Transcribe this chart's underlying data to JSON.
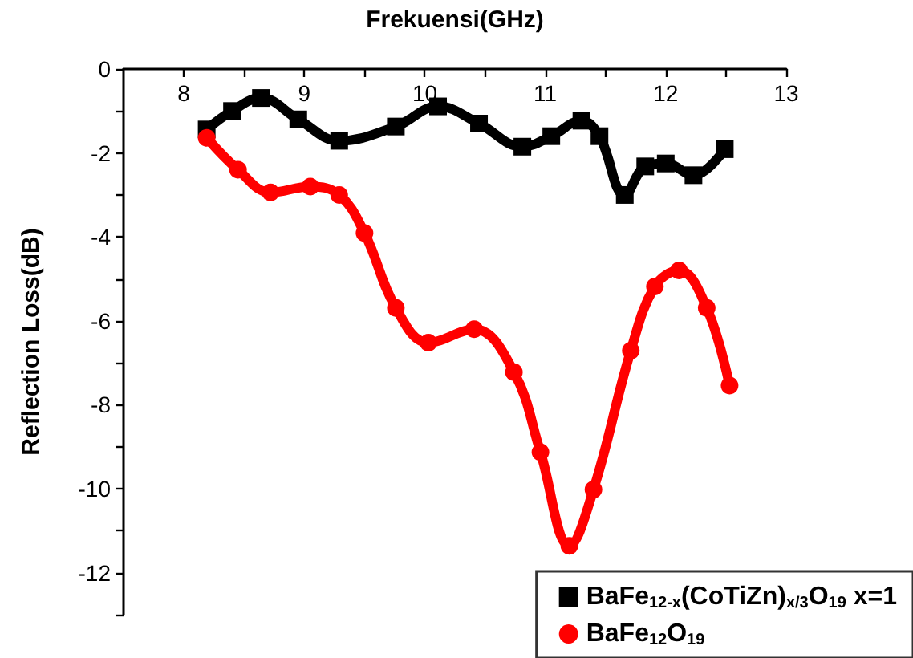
{
  "chart_data": {
    "type": "line",
    "xlabel": "Frekuensi(GHz)",
    "ylabel": "Reflection Loss(dB)",
    "xlim": [
      7.5,
      13
    ],
    "xticks": [
      8,
      {
        "value": 8.5,
        "label": null
      },
      9,
      {
        "value": 9.5,
        "label": null
      },
      10,
      {
        "value": 10.5,
        "label": null
      },
      11,
      {
        "value": 11.5,
        "label": null
      },
      12,
      {
        "value": 12.5,
        "label": null
      },
      13
    ],
    "ylim": [
      -13,
      0
    ],
    "yticks": [
      0,
      {
        "value": -1,
        "label": null
      },
      -2,
      {
        "value": -3,
        "label": null
      },
      -4,
      {
        "value": -5,
        "label": null
      },
      -6,
      {
        "value": -7,
        "label": null
      },
      -8,
      {
        "value": -9,
        "label": null
      },
      -10,
      {
        "value": -11,
        "label": null
      },
      -12,
      {
        "value": -13,
        "label": null
      }
    ],
    "legend": "bottom right",
    "grid": false,
    "series": [
      {
        "name": "BaFe$_{12-x}$(CoTiZn)$_{x/3}$O$_{19}$ x=1",
        "color": "#000000",
        "marker": "square",
        "x": [
          8.19,
          8.4,
          8.64,
          8.95,
          9.29,
          9.76,
          10.11,
          10.45,
          10.81,
          11.05,
          11.3,
          11.45,
          11.66,
          11.83,
          12.0,
          12.23,
          12.49
        ],
        "values": [
          -1.44,
          -1.0,
          -0.69,
          -1.2,
          -1.71,
          -1.37,
          -0.89,
          -1.3,
          -1.85,
          -1.6,
          -1.23,
          -1.6,
          -3.0,
          -2.32,
          -2.25,
          -2.53,
          -1.91
        ]
      },
      {
        "name": "BaFe$_{12}$O$_{19}$",
        "color": "#ff0000",
        "marker": "circle",
        "x": [
          8.19,
          8.45,
          8.72,
          9.05,
          9.29,
          9.5,
          9.76,
          10.03,
          10.41,
          10.74,
          10.96,
          11.2,
          11.4,
          11.71,
          11.91,
          12.11,
          12.34,
          12.53
        ],
        "values": [
          -1.64,
          -2.4,
          -2.94,
          -2.8,
          -3.0,
          -3.91,
          -5.69,
          -6.52,
          -6.2,
          -7.22,
          -9.13,
          -11.36,
          -10.02,
          -6.71,
          -5.18,
          -4.8,
          -5.69,
          -7.54
        ]
      }
    ]
  }
}
